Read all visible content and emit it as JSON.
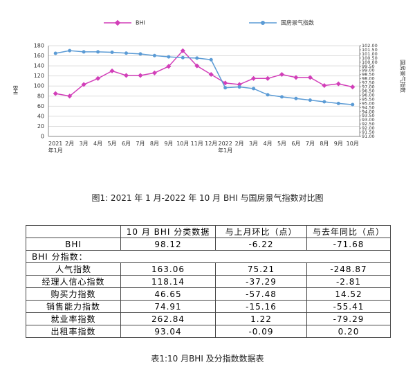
{
  "chart_data": {
    "type": "line",
    "categories": [
      "2021年1月",
      "2月",
      "3月",
      "4月",
      "5月",
      "6月",
      "7月",
      "8月",
      "9月",
      "10月",
      "11月",
      "12月",
      "2022年1月",
      "2月",
      "3月",
      "4月",
      "5月",
      "6月",
      "7月",
      "8月",
      "9月",
      "10月"
    ],
    "series": [
      {
        "name": "BHI",
        "color": "#d23fb9",
        "values": [
          85,
          80,
          103,
          115,
          130,
          121,
          121,
          126,
          139,
          170,
          140,
          123,
          106,
          103,
          115,
          115,
          123,
          117,
          117,
          101,
          104.34,
          98.12
        ]
      },
      {
        "name": "国房景气指数",
        "color": "#5b9bd5",
        "axis": "y2",
        "values": [
          101.08,
          101.4,
          101.25,
          101.25,
          101.2,
          101.1,
          101.0,
          100.8,
          100.65,
          100.55,
          100.5,
          100.3,
          96.9,
          97.0,
          96.8,
          96.05,
          95.8,
          95.6,
          95.4,
          95.2,
          95.0,
          94.86
        ]
      }
    ],
    "y_label": "BHI",
    "y2_label": "国房景气指数",
    "ylim": [
      0,
      180
    ],
    "yticks": [
      0,
      20,
      40,
      60,
      80,
      100,
      120,
      140,
      160,
      180
    ],
    "y2lim": [
      91,
      102
    ],
    "y2ticks": [
      {
        "value": 91,
        "label": "91.00"
      },
      {
        "value": 91.5,
        "label": "91.50"
      },
      {
        "value": 92,
        "label": "92.00"
      },
      {
        "value": 92.5,
        "label": "92.50"
      },
      {
        "value": 93,
        "label": "93.00"
      },
      {
        "value": 93.5,
        "label": "93.50"
      },
      {
        "value": 94,
        "label": "94.00"
      },
      {
        "value": 94.5,
        "label": "94.50"
      },
      {
        "value": 95,
        "label": "95.00"
      },
      {
        "value": 95.5,
        "label": "95.50"
      },
      {
        "value": 96,
        "label": "96.00"
      },
      {
        "value": 96.5,
        "label": "96.50"
      },
      {
        "value": 97,
        "label": "97.00"
      },
      {
        "value": 97.5,
        "label": "97.50"
      },
      {
        "value": 98,
        "label": "98.00"
      },
      {
        "value": 98.5,
        "label": "98.50"
      },
      {
        "value": 99,
        "label": "99.00"
      },
      {
        "value": 99.5,
        "label": "99.50"
      },
      {
        "value": 100,
        "label": "100.00"
      },
      {
        "value": 100.5,
        "label": "100.50"
      },
      {
        "value": 101,
        "label": "101.00"
      },
      {
        "value": 101.5,
        "label": "101.50"
      },
      {
        "value": 102,
        "label": "102.00"
      }
    ],
    "grid": true,
    "legend": "top"
  },
  "figure_caption": "图1: 2021 年 1 月-2022 年 10 月 BHI 与国房景气指数对比图",
  "table": {
    "header": [
      "10 月 BHI 分类数据",
      "与上月环比（点）",
      "与去年同比（点）"
    ],
    "rows": [
      [
        "BHI",
        "98.12",
        "-6.22",
        "-71.68"
      ],
      [
        "BHI 分指数："
      ],
      [
        "人气指数",
        "163.06",
        "75.21",
        "-248.87"
      ],
      [
        "经理人信心指数",
        "118.14",
        "-37.29",
        "-2.81"
      ],
      [
        "购买力指数",
        "46.65",
        "-57.48",
        "14.52"
      ],
      [
        "销售能力指数",
        "74.91",
        "-15.16",
        "-55.41"
      ],
      [
        "就业率指数",
        "262.84",
        "1.22",
        "-79.29"
      ],
      [
        "出租率指数",
        "93.04",
        "-0.09",
        "0.20"
      ]
    ]
  },
  "table_caption": "表1:10 月BHI 及分指数数据表"
}
